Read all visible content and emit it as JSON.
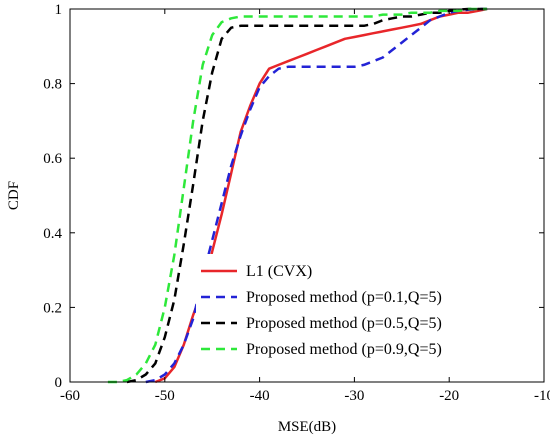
{
  "chart_data": {
    "type": "line",
    "title": "",
    "xlabel": "MSE(dB)",
    "ylabel": "CDF",
    "xlim": [
      -60,
      -10
    ],
    "ylim": [
      0,
      1
    ],
    "xticks": [
      -60,
      -50,
      -40,
      -30,
      -20,
      -10
    ],
    "yticks": [
      0,
      0.2,
      0.4,
      0.6,
      0.8,
      1
    ],
    "xtick_labels": [
      "-60",
      "-50",
      "-40",
      "-30",
      "-20",
      "-10"
    ],
    "ytick_labels": [
      "0",
      "0.2",
      "0.4",
      "0.6",
      "0.8",
      "1"
    ],
    "grid": false,
    "legend_position": "bottom-right",
    "series": [
      {
        "name": "L1 (CVX)",
        "color": "#e8262a",
        "dash": "solid",
        "x": [
          -51,
          -50,
          -49,
          -48,
          -47,
          -46,
          -45,
          -44,
          -43,
          -42,
          -41,
          -40,
          -39,
          -38,
          -37,
          -36,
          -35,
          -34,
          -33,
          -32,
          -31,
          -30,
          -29,
          -28,
          -27,
          -26,
          -25,
          -24,
          -23,
          -22,
          -21,
          -20,
          -19,
          -18,
          -17,
          -16
        ],
        "y": [
          0,
          0.01,
          0.04,
          0.1,
          0.18,
          0.25,
          0.35,
          0.45,
          0.56,
          0.67,
          0.74,
          0.8,
          0.84,
          0.85,
          0.86,
          0.87,
          0.88,
          0.89,
          0.9,
          0.91,
          0.92,
          0.925,
          0.93,
          0.935,
          0.94,
          0.945,
          0.95,
          0.955,
          0.96,
          0.97,
          0.98,
          0.985,
          0.99,
          0.99,
          0.995,
          1
        ]
      },
      {
        "name": "Proposed method (p=0.1,Q=5)",
        "color": "#2323d6",
        "dash": "dashed",
        "x": [
          -52,
          -51,
          -50,
          -49,
          -48,
          -47,
          -46,
          -45,
          -44,
          -43,
          -42,
          -41,
          -40,
          -39,
          -38,
          -37,
          -36,
          -35,
          -34,
          -33,
          -32,
          -31,
          -30,
          -29,
          -28,
          -27,
          -26,
          -25,
          -24,
          -23,
          -22,
          -21,
          -20,
          -19,
          -18,
          -17,
          -16
        ],
        "y": [
          0,
          0.005,
          0.02,
          0.05,
          0.1,
          0.17,
          0.28,
          0.38,
          0.48,
          0.58,
          0.66,
          0.73,
          0.79,
          0.82,
          0.84,
          0.845,
          0.845,
          0.845,
          0.845,
          0.845,
          0.845,
          0.845,
          0.845,
          0.85,
          0.86,
          0.87,
          0.89,
          0.91,
          0.93,
          0.95,
          0.97,
          0.98,
          0.99,
          0.995,
          0.998,
          1,
          1
        ]
      },
      {
        "name": "Proposed method (p=0.5,Q=5)",
        "color": "#000000",
        "dash": "dashed",
        "x": [
          -54,
          -53,
          -52,
          -51,
          -50,
          -49,
          -48,
          -47,
          -46,
          -45,
          -44,
          -43,
          -42,
          -41,
          -40,
          -39,
          -38,
          -37,
          -36,
          -35,
          -34,
          -33,
          -32,
          -31,
          -30,
          -29,
          -28,
          -27,
          -26,
          -25,
          -24,
          -23,
          -22,
          -21,
          -20,
          -19,
          -18,
          -17,
          -16
        ],
        "y": [
          0,
          0.005,
          0.02,
          0.05,
          0.12,
          0.22,
          0.37,
          0.53,
          0.7,
          0.83,
          0.92,
          0.95,
          0.955,
          0.955,
          0.955,
          0.955,
          0.955,
          0.955,
          0.955,
          0.955,
          0.955,
          0.955,
          0.955,
          0.955,
          0.955,
          0.955,
          0.96,
          0.97,
          0.975,
          0.98,
          0.98,
          0.985,
          0.99,
          0.99,
          0.995,
          0.998,
          1,
          1,
          1
        ]
      },
      {
        "name": "Proposed method (p=0.9,Q=5)",
        "color": "#2ee83a",
        "dash": "dashed",
        "x": [
          -56,
          -55,
          -54,
          -53,
          -52,
          -51,
          -50,
          -49,
          -48,
          -47,
          -46,
          -45,
          -44,
          -43,
          -42,
          -41,
          -40,
          -39,
          -38,
          -37,
          -36,
          -35,
          -34,
          -33,
          -32,
          -31,
          -30,
          -29,
          -28,
          -27,
          -26,
          -25,
          -24,
          -23,
          -22,
          -21,
          -20,
          -19,
          -18,
          -17,
          -16
        ],
        "y": [
          0,
          0,
          0.005,
          0.02,
          0.05,
          0.1,
          0.2,
          0.34,
          0.52,
          0.7,
          0.85,
          0.93,
          0.965,
          0.975,
          0.98,
          0.98,
          0.98,
          0.98,
          0.98,
          0.98,
          0.98,
          0.98,
          0.98,
          0.98,
          0.98,
          0.98,
          0.98,
          0.98,
          0.98,
          0.985,
          0.985,
          0.985,
          0.99,
          0.99,
          0.99,
          0.995,
          0.995,
          0.995,
          1,
          1,
          1
        ]
      }
    ]
  }
}
